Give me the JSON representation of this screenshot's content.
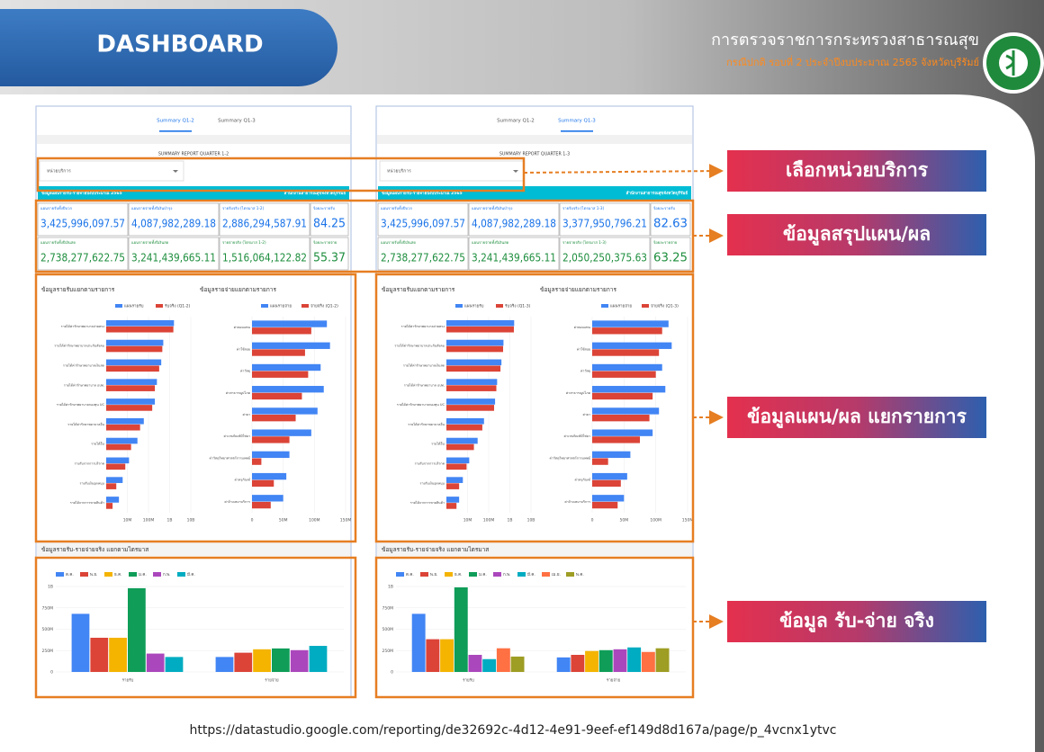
{
  "header": {
    "title": "DASHBOARD",
    "org": "การตรวจราชการกระทรวงสาธารณสุข",
    "subtitle": "กรณีปกติ รอบที่ 2 ประจำปีงบประมาณ 2565 จังหวัดบุรีรัมย์"
  },
  "callouts": [
    "เลือกหน่วยบริการ",
    "ข้อมูลสรุปแผน/ผล",
    "ข้อมูลแผน/ผล แยกรายการ",
    "ข้อมูล รับ-จ่าย จริง"
  ],
  "url": "https://datastudio.google.com/reporting/de32692c-4d12-4e91-9eef-ef149d8d167a/page/p_4vcnx1ytvc",
  "panels": [
    {
      "tabs": [
        "Summary Q1-2",
        "Summary Q1-3"
      ],
      "active_tab": 0,
      "report_title": "SUMMARY REPORT QUARTER 1-2",
      "dropdown": "หน่วยบริการ",
      "banner_left": "ข้อมูลแผนรายรับ-รายจ่ายปีงบประมาณ 2565",
      "banner_right": "สำนักงานสาธารณสุขจังหวัดบุรีรัมย์",
      "kpis": [
        {
          "label": "แผนรายรับทั้งปีบวก",
          "value": "3,425,996,097.57"
        },
        {
          "label": "แผนรายจ่ายทั้งปีเงินบำรุง",
          "value": "4,087,982,289.18"
        },
        {
          "label": "รายรับจริง (ไตรมาส 1-2)",
          "value": "2,886,294,587.91"
        },
        {
          "label": "ร้อยละรายรับ",
          "value": "84.25"
        },
        {
          "label": "แผนรายรับทั้งปีเงินสด",
          "value": "2,738,277,622.75"
        },
        {
          "label": "แผนรายจ่ายทั้งปีเงินสด",
          "value": "3,241,439,665.11"
        },
        {
          "label": "รายจ่ายจริง (ไตรมาส 1-2)",
          "value": "1,516,064,122.82"
        },
        {
          "label": "ร้อยละรายจ่าย",
          "value": "55.37"
        }
      ],
      "income_chart": {
        "type": "bar",
        "horizontal": true,
        "log_scale": true,
        "title": "ข้อมูลรายรับแยกตามรายการ",
        "categories": [
          "รายได้ค่ารักษาพยาบาลจ่ายตรง",
          "รายได้ค่ารักษาพยาบาลประกันสังคม",
          "รายได้ค่ารักษาพยาบาลเงินสด",
          "รายได้ค่ารักษาพยาบาล อปท.",
          "รายได้ค่ารักษาพยาบาลกองทุน UC",
          "รายได้ค่ารักษาพยาบาลอื่น",
          "รายได้อื่น",
          "รายรับจากการบริจาค",
          "รายรับเงินอุดหนุน",
          "รายได้จากการขายสินค้า"
        ],
        "series": [
          {
            "name": "แผนรายรับ",
            "color": "#4285f4",
            "values": [
              1600000000,
              500000000,
              400000000,
              250000000,
              200000000,
              60000000,
              30000000,
              12000000,
              6000000,
              4000000
            ]
          },
          {
            "name": "รับจริง (Q1-2)",
            "color": "#db4437",
            "values": [
              1500000000,
              450000000,
              320000000,
              200000000,
              150000000,
              40000000,
              15000000,
              8000000,
              3000000,
              2000000
            ]
          }
        ],
        "xlim": [
          1000000,
          10000000000
        ],
        "xticks": [
          {
            "value": 10000000,
            "label": "10M"
          },
          {
            "value": 100000000,
            "label": "100M"
          },
          {
            "value": 1000000000,
            "label": "1B"
          },
          {
            "value": 10000000000,
            "label": "10B"
          }
        ]
      },
      "expense_chart": {
        "type": "bar",
        "horizontal": true,
        "log_scale": false,
        "title": "ข้อมูลรายจ่ายแยกตามรายการ",
        "categories": [
          "ค่าตอบแทน",
          "ค่าใช้สอย",
          "ค่าวัสดุ",
          "ค่าสาธารณูปโภค",
          "ค่ายา",
          "ค่าเวชภัณฑ์มิใช่ยา",
          "ค่าวัสดุวิทยาศาสตร์การแพทย์",
          "ค่าครุภัณฑ์",
          "ค่าจ้างเหมาบริการ"
        ],
        "series": [
          {
            "name": "แผนรายจ่าย",
            "color": "#4285f4",
            "values": [
              120000000,
              125000000,
              110000000,
              115000000,
              105000000,
              95000000,
              60000000,
              55000000,
              50000000
            ]
          },
          {
            "name": "จ่ายจริง (Q1-2)",
            "color": "#db4437",
            "values": [
              95000000,
              85000000,
              90000000,
              80000000,
              70000000,
              60000000,
              15000000,
              35000000,
              30000000
            ]
          }
        ],
        "xlim": [
          0,
          150000000
        ],
        "xticks": [
          0,
          {
            "value": 50000000,
            "label": "50M"
          },
          {
            "value": 100000000,
            "label": "100M"
          },
          {
            "value": 150000000,
            "label": "150M"
          }
        ]
      },
      "monthly_chart": {
        "type": "bar",
        "title": "ข้อมูลรายรับ-รายจ่ายจริง แยกตามไตรมาส",
        "categories": [
          "รายรับ",
          "รายจ่าย"
        ],
        "series": [
          {
            "name": "ต.ค.",
            "color": "#4285f4",
            "values": [
              680000000,
              175000000
            ]
          },
          {
            "name": "พ.ย.",
            "color": "#db4437",
            "values": [
              400000000,
              225000000
            ]
          },
          {
            "name": "ธ.ค.",
            "color": "#f4b400",
            "values": [
              400000000,
              265000000
            ]
          },
          {
            "name": "ม.ค.",
            "color": "#0f9d58",
            "values": [
              980000000,
              275000000
            ]
          },
          {
            "name": "ก.พ.",
            "color": "#ab47bc",
            "values": [
              215000000,
              255000000
            ]
          },
          {
            "name": "มี.ค.",
            "color": "#00acc1",
            "values": [
              175000000,
              305000000
            ]
          }
        ],
        "ylim": [
          0,
          1000000000
        ],
        "yticks": [
          0,
          {
            "value": 250000000,
            "label": "250M"
          },
          {
            "value": 500000000,
            "label": "500M"
          },
          {
            "value": 750000000,
            "label": "750M"
          },
          {
            "value": 1000000000,
            "label": "1B"
          }
        ]
      }
    },
    {
      "tabs": [
        "Summary Q1-2",
        "Summary Q1-3"
      ],
      "active_tab": 1,
      "report_title": "SUMMARY REPORT QUARTER 1-3",
      "dropdown": "หน่วยบริการ",
      "banner_left": "ข้อมูลแผนรายรับ-รายจ่ายปีงบประมาณ 2565",
      "banner_right": "สำนักงานสาธารณสุขจังหวัดบุรีรัมย์",
      "kpis": [
        {
          "label": "แผนรายรับทั้งปีบวก",
          "value": "3,425,996,097.57"
        },
        {
          "label": "แผนรายจ่ายทั้งปีเงินบำรุง",
          "value": "4,087,982,289.18"
        },
        {
          "label": "รายรับจริง (ไตรมาส 1-3)",
          "value": "3,377,950,796.21"
        },
        {
          "label": "ร้อยละรายรับ",
          "value": "82.63"
        },
        {
          "label": "แผนรายรับทั้งปีเงินสด",
          "value": "2,738,277,622.75"
        },
        {
          "label": "แผนรายจ่ายทั้งปีเงินสด",
          "value": "3,241,439,665.11"
        },
        {
          "label": "รายจ่ายจริง (ไตรมาส 1-3)",
          "value": "2,050,250,375.63"
        },
        {
          "label": "ร้อยละรายจ่าย",
          "value": "63.25"
        }
      ],
      "income_chart": {
        "type": "bar",
        "horizontal": true,
        "log_scale": true,
        "title": "ข้อมูลรายรับแยกตามรายการ",
        "categories": [
          "รายได้ค่ารักษาพยาบาลจ่ายตรง",
          "รายได้ค่ารักษาพยาบาลประกันสังคม",
          "รายได้ค่ารักษาพยาบาลเงินสด",
          "รายได้ค่ารักษาพยาบาล อปท.",
          "รายได้ค่ารักษาพยาบาลกองทุน UC",
          "รายได้ค่ารักษาพยาบาลอื่น",
          "รายได้อื่น",
          "รายรับจากการบริจาค",
          "รายรับเงินอุดหนุน",
          "รายได้จากการขายสินค้า"
        ],
        "series": [
          {
            "name": "แผนรายรับ",
            "color": "#4285f4",
            "values": [
              1600000000,
              500000000,
              400000000,
              250000000,
              200000000,
              60000000,
              30000000,
              12000000,
              6000000,
              4000000
            ]
          },
          {
            "name": "รับจริง (Q1-3)",
            "color": "#db4437",
            "values": [
              1550000000,
              480000000,
              360000000,
              230000000,
              180000000,
              50000000,
              20000000,
              9000000,
              4000000,
              3000000
            ]
          }
        ],
        "xlim": [
          1000000,
          10000000000
        ],
        "xticks": [
          {
            "value": 10000000,
            "label": "10M"
          },
          {
            "value": 100000000,
            "label": "100M"
          },
          {
            "value": 1000000000,
            "label": "1B"
          },
          {
            "value": 10000000000,
            "label": "10B"
          }
        ]
      },
      "expense_chart": {
        "type": "bar",
        "horizontal": true,
        "log_scale": false,
        "title": "ข้อมูลรายจ่ายแยกตามรายการ",
        "categories": [
          "ค่าตอบแทน",
          "ค่าใช้สอย",
          "ค่าวัสดุ",
          "ค่าสาธารณูปโภค",
          "ค่ายา",
          "ค่าเวชภัณฑ์มิใช่ยา",
          "ค่าวัสดุวิทยาศาสตร์การแพทย์",
          "ค่าครุภัณฑ์",
          "ค่าจ้างเหมาบริการ"
        ],
        "series": [
          {
            "name": "แผนรายจ่าย",
            "color": "#4285f4",
            "values": [
              120000000,
              125000000,
              110000000,
              115000000,
              105000000,
              95000000,
              60000000,
              55000000,
              50000000
            ]
          },
          {
            "name": "จ่ายจริง (Q1-3)",
            "color": "#db4437",
            "values": [
              110000000,
              105000000,
              100000000,
              95000000,
              90000000,
              75000000,
              25000000,
              45000000,
              40000000
            ]
          }
        ],
        "xlim": [
          0,
          150000000
        ],
        "xticks": [
          0,
          {
            "value": 50000000,
            "label": "50M"
          },
          {
            "value": 100000000,
            "label": "100M"
          },
          {
            "value": 150000000,
            "label": "150M"
          }
        ]
      },
      "monthly_chart": {
        "type": "bar",
        "title": "ข้อมูลรายรับ-รายจ่ายจริง แยกตามไตรมาส",
        "categories": [
          "รายรับ",
          "รายจ่าย"
        ],
        "series": [
          {
            "name": "ต.ค.",
            "color": "#4285f4",
            "values": [
              680000000,
              170000000
            ]
          },
          {
            "name": "พ.ย.",
            "color": "#db4437",
            "values": [
              383000000,
              200000000
            ]
          },
          {
            "name": "ธ.ค.",
            "color": "#f4b400",
            "values": [
              383000000,
              245000000
            ]
          },
          {
            "name": "ม.ค.",
            "color": "#0f9d58",
            "values": [
              990000000,
              255000000
            ]
          },
          {
            "name": "ก.พ.",
            "color": "#ab47bc",
            "values": [
              200000000,
              265000000
            ]
          },
          {
            "name": "มี.ค.",
            "color": "#00acc1",
            "values": [
              150000000,
              287000000
            ]
          },
          {
            "name": "เม.ย.",
            "color": "#ff7043",
            "values": [
              277000000,
              234000000
            ]
          },
          {
            "name": "พ.ค.",
            "color": "#9e9d24",
            "values": [
              180000000,
              277000000
            ]
          }
        ],
        "ylim": [
          0,
          1000000000
        ],
        "yticks": [
          0,
          {
            "value": 250000000,
            "label": "250M"
          },
          {
            "value": 500000000,
            "label": "500M"
          },
          {
            "value": 750000000,
            "label": "750M"
          },
          {
            "value": 1000000000,
            "label": "1B"
          }
        ]
      }
    }
  ]
}
